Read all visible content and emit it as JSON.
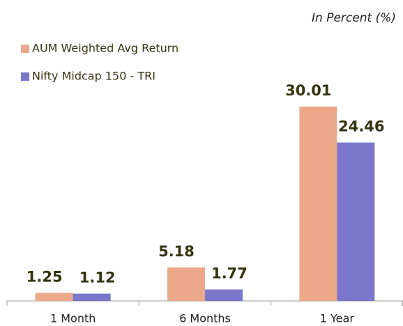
{
  "chart_data": {
    "type": "bar",
    "subtitle": "In Percent (%)",
    "categories": [
      "1 Month",
      "6 Months",
      "1 Year"
    ],
    "series": [
      {
        "name": "AUM Weighted Avg Return",
        "color": "#eba98a",
        "values": [
          1.25,
          5.18,
          30.01
        ]
      },
      {
        "name": "Nifty Midcap 150 - TRI",
        "color": "#7b78cc",
        "values": [
          1.12,
          1.77,
          24.46
        ]
      }
    ],
    "legend": "top-left"
  }
}
